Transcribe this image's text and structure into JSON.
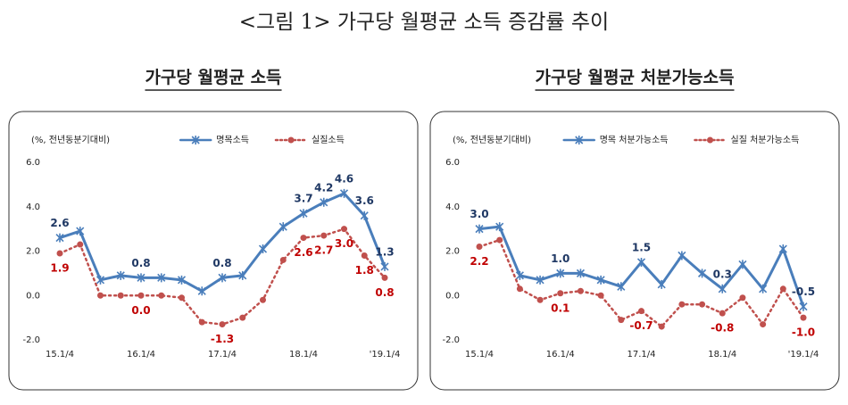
{
  "title": "<그림 1> 가구당 월평균 소득 증감률 추이",
  "chart_data": [
    {
      "type": "line",
      "title": "가구당 월평균 소득",
      "ylabel": "(%, 전년동분기대비)",
      "categories": [
        "15.1/4",
        null,
        null,
        null,
        "16.1/4",
        null,
        null,
        null,
        "17.1/4",
        null,
        null,
        null,
        "18.1/4",
        null,
        null,
        null,
        "'19.1/4"
      ],
      "ylim": [
        -2,
        6
      ],
      "yticks": [
        {
          "value": -2,
          "label": "-2.0"
        },
        {
          "value": 0,
          "label": "0.0"
        },
        {
          "value": 2,
          "label": "2.0"
        },
        {
          "value": 4,
          "label": "4.0"
        },
        {
          "value": 6,
          "label": "6.0"
        }
      ],
      "legend": "top",
      "series": [
        {
          "name": "명목소득",
          "color": "#4a7ebb",
          "label_color": "#1f3864",
          "marker": "asterisk",
          "dash": "solid",
          "values": [
            2.6,
            2.9,
            0.7,
            0.9,
            0.8,
            0.8,
            0.7,
            0.2,
            0.8,
            0.9,
            2.1,
            3.1,
            3.7,
            4.2,
            4.6,
            3.6,
            1.3
          ],
          "value_labels": [
            "2.6",
            null,
            null,
            null,
            "0.8",
            null,
            null,
            null,
            "0.8",
            null,
            null,
            null,
            "3.7",
            "4.2",
            "4.6",
            "3.6",
            "1.3"
          ]
        },
        {
          "name": "실질소득",
          "color": "#c0504d",
          "label_color": "#c00000",
          "marker": "circle",
          "dash": "dotted",
          "values": [
            1.9,
            2.3,
            0.0,
            0.0,
            0.0,
            0.0,
            -0.1,
            -1.2,
            -1.3,
            -1.0,
            -0.2,
            1.6,
            2.6,
            2.7,
            3.0,
            1.8,
            0.8
          ],
          "value_labels": [
            "1.9",
            null,
            null,
            null,
            "0.0",
            null,
            null,
            null,
            "-1.3",
            null,
            null,
            null,
            "2.6",
            "2.7",
            "3.0",
            "1.8",
            "0.8"
          ]
        }
      ]
    },
    {
      "type": "line",
      "title": "가구당 월평균 처분가능소득",
      "ylabel": "(%, 전년동분기대비)",
      "categories": [
        "15.1/4",
        null,
        null,
        null,
        "16.1/4",
        null,
        null,
        null,
        "17.1/4",
        null,
        null,
        null,
        "18.1/4",
        null,
        null,
        null,
        "'19.1/4"
      ],
      "ylim": [
        -2,
        6
      ],
      "yticks": [
        {
          "value": -2,
          "label": "-2.0"
        },
        {
          "value": 0,
          "label": "0.0"
        },
        {
          "value": 2,
          "label": "2.0"
        },
        {
          "value": 4,
          "label": "4.0"
        },
        {
          "value": 6,
          "label": "6.0"
        }
      ],
      "legend": "top",
      "series": [
        {
          "name": "명목 처분가능소득",
          "color": "#4a7ebb",
          "label_color": "#1f3864",
          "marker": "asterisk",
          "dash": "solid",
          "values": [
            3.0,
            3.1,
            0.9,
            0.7,
            1.0,
            1.0,
            0.7,
            0.4,
            1.5,
            0.5,
            1.8,
            1.0,
            0.3,
            1.4,
            0.3,
            2.1,
            -0.5
          ],
          "value_labels": [
            "3.0",
            null,
            null,
            null,
            "1.0",
            null,
            null,
            null,
            "1.5",
            null,
            null,
            null,
            "0.3",
            null,
            null,
            null,
            "-0.5"
          ]
        },
        {
          "name": "실질 처분가능소득",
          "color": "#c0504d",
          "label_color": "#c00000",
          "marker": "circle",
          "dash": "dotted",
          "values": [
            2.2,
            2.5,
            0.3,
            -0.2,
            0.1,
            0.2,
            0.0,
            -1.1,
            -0.7,
            -1.4,
            -0.4,
            -0.4,
            -0.8,
            -0.1,
            -1.3,
            0.3,
            -1.0
          ],
          "value_labels": [
            "2.2",
            null,
            null,
            null,
            "0.1",
            null,
            null,
            null,
            "-0.7",
            null,
            null,
            null,
            "-0.8",
            null,
            null,
            null,
            "-1.0"
          ]
        }
      ]
    }
  ]
}
